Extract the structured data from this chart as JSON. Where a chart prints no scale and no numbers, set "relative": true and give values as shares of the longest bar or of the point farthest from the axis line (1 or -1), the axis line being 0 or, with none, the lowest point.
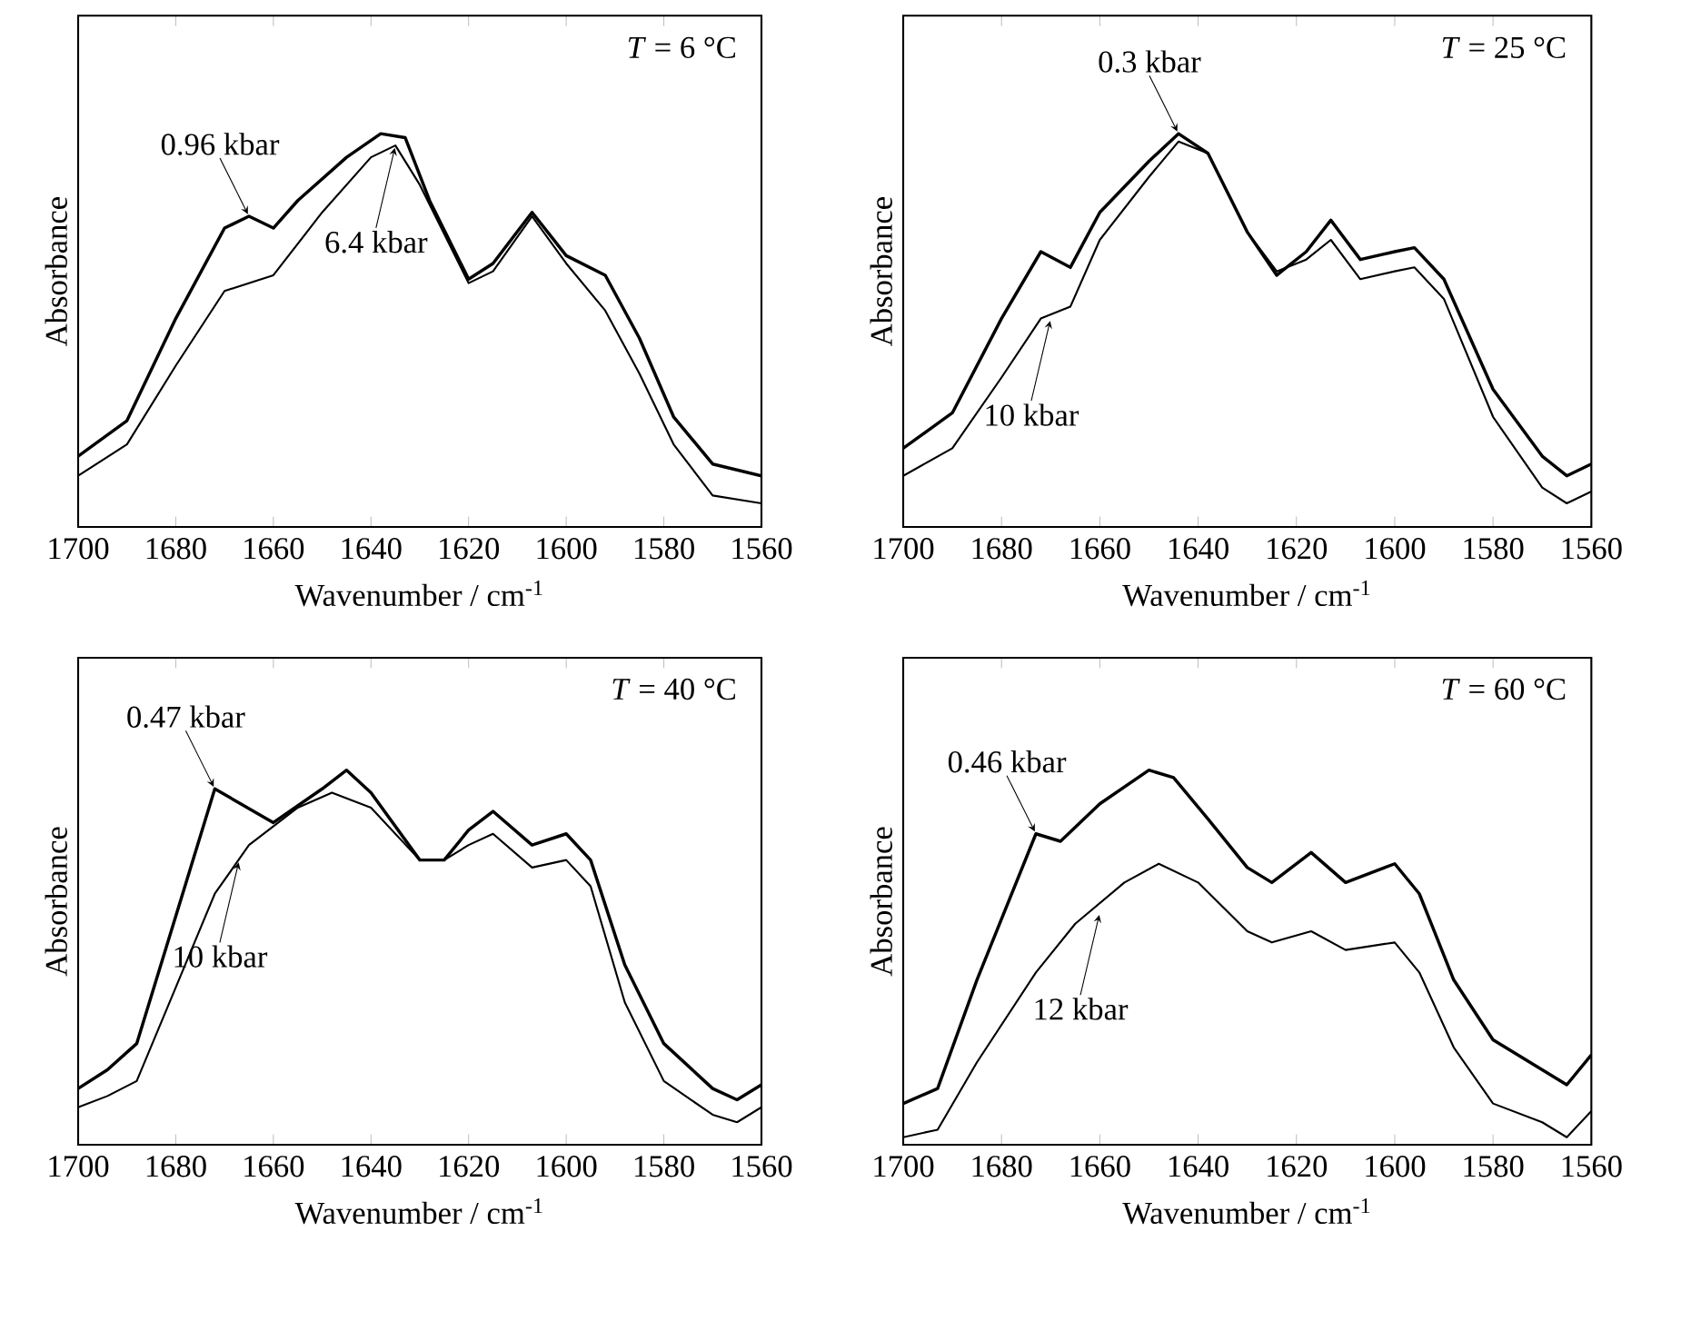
{
  "chart_data": [
    {
      "type": "line",
      "relative": true,
      "xlabel": "Wavenumber / cm$^{-1}$",
      "ylabel": "Absorbance",
      "xlim": [
        1700,
        1560
      ],
      "xticks": [
        1700,
        1680,
        1660,
        1640,
        1620,
        1600,
        1580,
        1560
      ],
      "series": [
        {
          "color": "#000000",
          "x": [
            1700,
            1690,
            1680,
            1670,
            1665,
            1660,
            1655,
            1645,
            1638,
            1633,
            1628,
            1620,
            1615,
            1607,
            1600,
            1592,
            1585,
            1578,
            1570,
            1560
          ],
          "values": [
            0.18,
            0.27,
            0.53,
            0.76,
            0.79,
            0.76,
            0.83,
            0.94,
            1,
            0.99,
            0.83,
            0.63,
            0.67,
            0.8,
            0.69,
            0.64,
            0.48,
            0.28,
            0.16,
            0.13
          ]
        },
        {
          "color": "#000000",
          "x": [
            1700,
            1690,
            1680,
            1670,
            1665,
            1660,
            1650,
            1640,
            1635,
            1630,
            1620,
            1615,
            1607,
            1600,
            1592,
            1585,
            1578,
            1570,
            1560
          ],
          "values": [
            0.13,
            0.21,
            0.41,
            0.6,
            0.62,
            0.64,
            0.8,
            0.94,
            0.97,
            0.87,
            0.62,
            0.65,
            0.79,
            0.67,
            0.55,
            0.39,
            0.21,
            0.08,
            0.06
          ]
        }
      ],
      "annotations": [
        "*T* = 6 °C",
        {
          "text": "0.96 kbar",
          "x": 1665,
          "y": 0.79
        },
        {
          "text": "6.4 kbar",
          "x": 1635,
          "y": 0.97
        }
      ]
    },
    {
      "type": "line",
      "relative": true,
      "xlabel": "Wavenumber / cm$^{-1}$",
      "ylabel": "Absorbance",
      "xlim": [
        1700,
        1560
      ],
      "xticks": [
        1700,
        1680,
        1660,
        1640,
        1620,
        1600,
        1580,
        1560
      ],
      "series": [
        {
          "color": "#000000",
          "x": [
            1700,
            1690,
            1680,
            1672,
            1666,
            1660,
            1650,
            1644,
            1638,
            1630,
            1624,
            1618,
            1613,
            1607,
            1600,
            1596,
            1590,
            1580,
            1570,
            1565,
            1560
          ],
          "values": [
            0.2,
            0.29,
            0.53,
            0.7,
            0.66,
            0.8,
            0.93,
            1,
            0.95,
            0.75,
            0.64,
            0.7,
            0.78,
            0.68,
            0.7,
            0.71,
            0.63,
            0.35,
            0.18,
            0.13,
            0.16
          ]
        },
        {
          "color": "#000000",
          "x": [
            1700,
            1690,
            1680,
            1672,
            1666,
            1660,
            1650,
            1644,
            1638,
            1630,
            1624,
            1618,
            1613,
            1607,
            1600,
            1596,
            1590,
            1580,
            1570,
            1565,
            1560
          ],
          "values": [
            0.13,
            0.2,
            0.38,
            0.53,
            0.56,
            0.73,
            0.89,
            0.98,
            0.95,
            0.75,
            0.65,
            0.68,
            0.73,
            0.63,
            0.65,
            0.66,
            0.58,
            0.28,
            0.1,
            0.06,
            0.09
          ]
        }
      ],
      "annotations": [
        "*T* = 25 °C",
        {
          "text": "0.3 kbar",
          "x": 1644,
          "y": 1
        },
        {
          "text": "10 kbar",
          "x": 1670,
          "y": 0.53
        }
      ]
    },
    {
      "type": "line",
      "relative": true,
      "xlabel": "Wavenumber / cm$^{-1}$",
      "ylabel": "Absorbance",
      "xlim": [
        1700,
        1560
      ],
      "xticks": [
        1700,
        1680,
        1660,
        1640,
        1620,
        1600,
        1580,
        1560
      ],
      "series": [
        {
          "color": "#000000",
          "x": [
            1700,
            1694,
            1688,
            1680,
            1672,
            1668,
            1660,
            1650,
            1645,
            1640,
            1630,
            1625,
            1620,
            1615,
            1607,
            1600,
            1595,
            1588,
            1580,
            1570,
            1565,
            1560
          ],
          "values": [
            0.15,
            0.2,
            0.27,
            0.61,
            0.95,
            0.92,
            0.86,
            0.95,
            1,
            0.94,
            0.76,
            0.76,
            0.84,
            0.89,
            0.8,
            0.83,
            0.76,
            0.48,
            0.27,
            0.15,
            0.12,
            0.16
          ]
        },
        {
          "color": "#000000",
          "x": [
            1700,
            1694,
            1688,
            1680,
            1672,
            1665,
            1655,
            1648,
            1640,
            1630,
            1625,
            1620,
            1615,
            1607,
            1600,
            1595,
            1588,
            1580,
            1570,
            1565,
            1560
          ],
          "values": [
            0.1,
            0.13,
            0.17,
            0.42,
            0.67,
            0.8,
            0.9,
            0.94,
            0.9,
            0.76,
            0.76,
            0.8,
            0.83,
            0.74,
            0.76,
            0.69,
            0.38,
            0.17,
            0.08,
            0.06,
            0.1
          ]
        }
      ],
      "annotations": [
        "*T* = 40 °C",
        {
          "text": "0.47 kbar",
          "x": 1672,
          "y": 0.95
        },
        {
          "text": "10 kbar",
          "x": 1667,
          "y": 0.76
        }
      ]
    },
    {
      "type": "line",
      "relative": true,
      "xlabel": "Wavenumber / cm$^{-1}$",
      "ylabel": "Absorbance",
      "xlim": [
        1700,
        1560
      ],
      "xticks": [
        1700,
        1680,
        1660,
        1640,
        1620,
        1600,
        1580,
        1560
      ],
      "series": [
        {
          "color": "#000000",
          "x": [
            1700,
            1693,
            1685,
            1673,
            1668,
            1660,
            1650,
            1645,
            1638,
            1630,
            1625,
            1617,
            1610,
            1600,
            1595,
            1588,
            1580,
            1570,
            1565,
            1560
          ],
          "values": [
            0.11,
            0.15,
            0.44,
            0.83,
            0.81,
            0.91,
            1,
            0.98,
            0.87,
            0.74,
            0.7,
            0.78,
            0.7,
            0.75,
            0.67,
            0.44,
            0.28,
            0.2,
            0.16,
            0.24
          ]
        },
        {
          "color": "#000000",
          "x": [
            1700,
            1693,
            1685,
            1673,
            1665,
            1655,
            1648,
            1640,
            1630,
            1625,
            1617,
            1610,
            1600,
            1595,
            1588,
            1580,
            1570,
            1565,
            1560
          ],
          "values": [
            0.02,
            0.04,
            0.22,
            0.46,
            0.59,
            0.7,
            0.75,
            0.7,
            0.57,
            0.54,
            0.57,
            0.52,
            0.54,
            0.46,
            0.26,
            0.11,
            0.06,
            0.02,
            0.09
          ]
        }
      ],
      "annotations": [
        "*T* = 60 °C",
        {
          "text": "0.46 kbar",
          "x": 1673,
          "y": 0.83
        },
        {
          "text": "12 kbar",
          "x": 1660,
          "y": 0.62
        }
      ]
    }
  ]
}
